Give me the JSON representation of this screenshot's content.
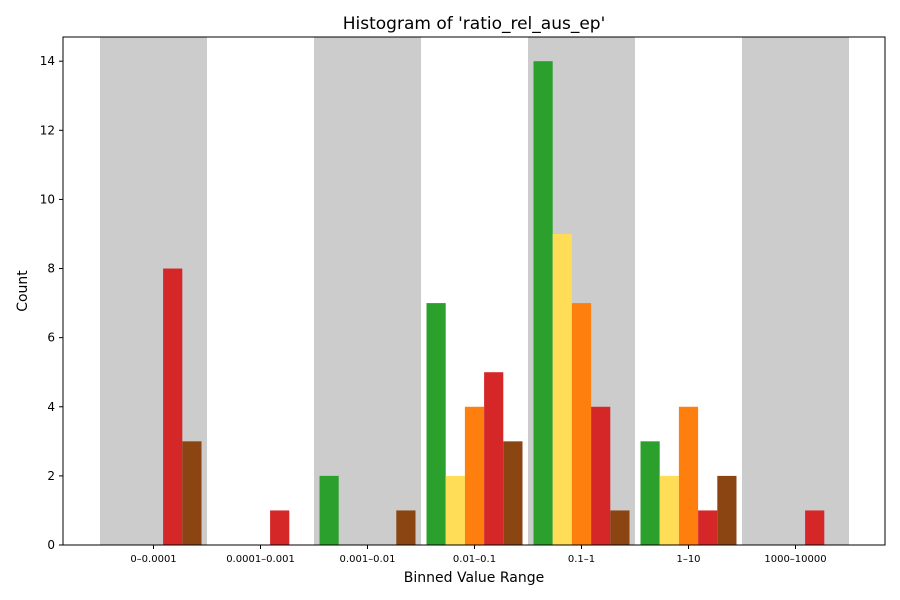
{
  "chart_data": {
    "type": "bar",
    "title": "Histogram of 'ratio_rel_aus_ep'",
    "xlabel": "Binned Value Range",
    "ylabel": "Count",
    "categories": [
      "0–0.0001",
      "0.0001–0.001",
      "0.001–0.01",
      "0.01–0.1",
      "0.1–1",
      "1–10",
      "1000–10000"
    ],
    "series": [
      {
        "color": "#2ca02c",
        "values": [
          0,
          0,
          2,
          7,
          14,
          3,
          0
        ]
      },
      {
        "color": "#ffdd57",
        "values": [
          0,
          0,
          0,
          2,
          9,
          2,
          0
        ]
      },
      {
        "color": "#ff7f0e",
        "values": [
          0,
          0,
          0,
          4,
          7,
          4,
          0
        ]
      },
      {
        "color": "#d62728",
        "values": [
          8,
          1,
          0,
          5,
          4,
          1,
          1
        ]
      },
      {
        "color": "#8b4513",
        "values": [
          3,
          0,
          1,
          3,
          1,
          2,
          0
        ]
      }
    ],
    "ylim": [
      0,
      14.7
    ],
    "yticks": [
      0,
      2,
      4,
      6,
      8,
      10,
      12,
      14
    ],
    "ytick_labels": [
      "0",
      "2",
      "4",
      "6",
      "8",
      "10",
      "12",
      "14"
    ],
    "alternating_band_color": "#cccccc",
    "shaded_categories": [
      0,
      2,
      4,
      6
    ],
    "grid": false,
    "legend": "none"
  }
}
